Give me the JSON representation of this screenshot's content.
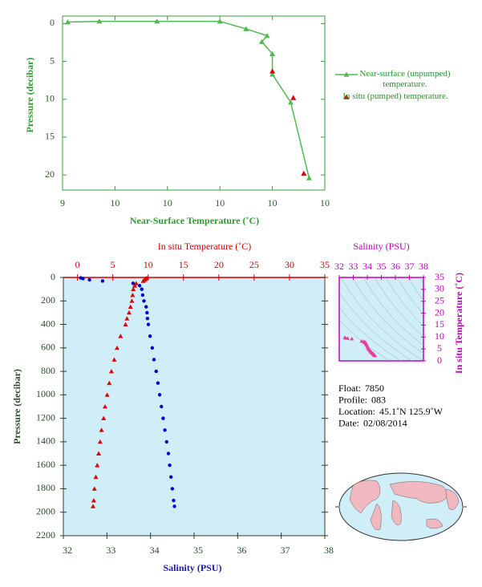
{
  "chart_data": [
    {
      "type": "line",
      "x_label": "Near-Surface Temperature (˚C)",
      "y_label": "Pressure (decibar)",
      "xlim": [
        9.4,
        10.4
      ],
      "xticks": [
        {
          "value": 9.4,
          "label": "9"
        },
        {
          "value": 9.6,
          "label": "10"
        },
        {
          "value": 9.8,
          "label": "10"
        },
        {
          "value": 10.0,
          "label": "10"
        },
        {
          "value": 10.2,
          "label": "10"
        },
        {
          "value": 10.4,
          "label": "10"
        }
      ],
      "ylim": [
        -1,
        22
      ],
      "y_inverted": true,
      "yticks": [
        0,
        5,
        10,
        15,
        20
      ],
      "axis_color": "#3c9a3c",
      "series": [
        {
          "name": "Near-surface (unpumped) temperature.",
          "color": "#52b852",
          "line": true,
          "x": [
            9.42,
            9.54,
            9.76,
            10.0,
            10.1,
            10.18,
            10.16,
            10.2,
            10.2,
            10.27,
            10.34
          ],
          "y": [
            -0.2,
            -0.3,
            -0.3,
            -0.3,
            0.7,
            1.6,
            2.4,
            4.0,
            6.7,
            10.4,
            20.4
          ]
        },
        {
          "name": "In situ (pumped) temperature.",
          "color": "#e00000",
          "line": false,
          "x": [
            10.2,
            10.28,
            10.32
          ],
          "y": [
            6.3,
            9.8,
            19.8
          ]
        }
      ]
    },
    {
      "type": "profile",
      "y_label": "Pressure (decibar)",
      "x_label": "Salinity (PSU)",
      "x2_label": "In situ Temperature (˚C)",
      "xlim": [
        32,
        38
      ],
      "xticks": [
        32,
        33,
        34,
        35,
        36,
        37,
        38
      ],
      "x2lim": [
        -2,
        35
      ],
      "x2ticks": [
        0,
        5,
        10,
        15,
        20,
        25,
        30,
        35
      ],
      "ylim": [
        0,
        2200
      ],
      "y_inverted": true,
      "yticks": [
        0,
        200,
        400,
        600,
        800,
        1000,
        1200,
        1400,
        1600,
        1800,
        2000,
        2200
      ],
      "background": "#cfeef7",
      "y": [
        4,
        10,
        20,
        30,
        50,
        70,
        100,
        150,
        200,
        250,
        300,
        350,
        400,
        500,
        600,
        700,
        800,
        900,
        1000,
        1100,
        1200,
        1300,
        1400,
        1500,
        1600,
        1700,
        1800,
        1900,
        1950
      ],
      "series": [
        {
          "axis": "x2",
          "color": "#e00000",
          "marker": "triangle",
          "values": [
            9.8,
            9.6,
            9.5,
            9.3,
            8.3,
            8.1,
            7.9,
            7.8,
            7.7,
            7.5,
            7.3,
            7.0,
            6.8,
            6.1,
            5.6,
            5.2,
            4.8,
            4.5,
            4.2,
            3.9,
            3.7,
            3.4,
            3.2,
            3.0,
            2.8,
            2.6,
            2.4,
            2.3,
            2.2
          ]
        },
        {
          "axis": "x",
          "color": "#0000d0",
          "marker": "circle",
          "values": [
            32.4,
            32.45,
            32.6,
            32.9,
            33.6,
            33.75,
            33.8,
            33.82,
            33.85,
            33.9,
            33.92,
            33.93,
            33.95,
            33.99,
            34.04,
            34.08,
            34.13,
            34.17,
            34.21,
            34.25,
            34.29,
            34.33,
            34.37,
            34.41,
            34.44,
            34.47,
            34.5,
            34.53,
            34.55
          ]
        }
      ]
    },
    {
      "type": "ts",
      "x_label": "Salinity (PSU)",
      "y_label": "In situ Temperature (˚C)",
      "xlim": [
        32,
        38
      ],
      "xticks": [
        32,
        33,
        34,
        35,
        36,
        37,
        38
      ],
      "ylim": [
        0,
        35
      ],
      "yticks": [
        0,
        5,
        10,
        15,
        20,
        25,
        30,
        35
      ],
      "color": "#e8409a"
    }
  ],
  "info": [
    {
      "label": "Float:",
      "value": "7850"
    },
    {
      "label": "Profile:",
      "value": "083"
    },
    {
      "label": "Location:",
      "value": "45.1˚N  125.9˚W"
    },
    {
      "label": "Date:",
      "value": "02/08/2014"
    }
  ]
}
